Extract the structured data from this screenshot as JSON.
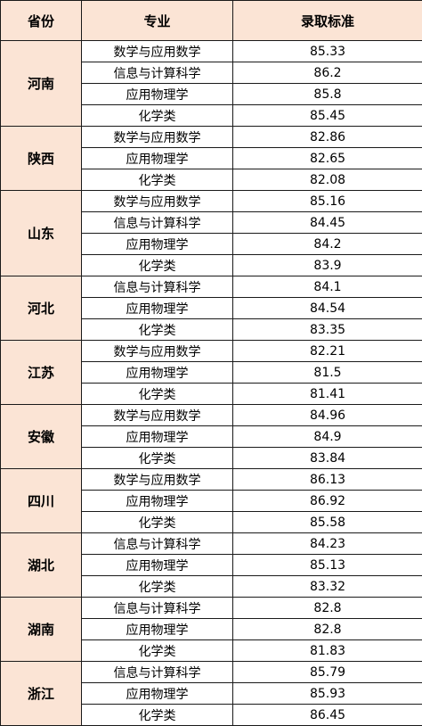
{
  "header": {
    "province": "省份",
    "major": "专业",
    "score": "录取标准"
  },
  "groups": [
    {
      "province": "河南",
      "rows": [
        {
          "major": "数学与应用数学",
          "score": "85.33"
        },
        {
          "major": "信息与计算科学",
          "score": "86.2"
        },
        {
          "major": "应用物理学",
          "score": "85.8"
        },
        {
          "major": "化学类",
          "score": "85.45"
        }
      ]
    },
    {
      "province": "陕西",
      "rows": [
        {
          "major": "数学与应用数学",
          "score": "82.86"
        },
        {
          "major": "应用物理学",
          "score": "82.65"
        },
        {
          "major": "化学类",
          "score": "82.08"
        }
      ]
    },
    {
      "province": "山东",
      "rows": [
        {
          "major": "数学与应用数学",
          "score": "85.16"
        },
        {
          "major": "信息与计算科学",
          "score": "84.45"
        },
        {
          "major": "应用物理学",
          "score": "84.2"
        },
        {
          "major": "化学类",
          "score": "83.9"
        }
      ]
    },
    {
      "province": "河北",
      "rows": [
        {
          "major": "信息与计算科学",
          "score": "84.1"
        },
        {
          "major": "应用物理学",
          "score": "84.54"
        },
        {
          "major": "化学类",
          "score": "83.35"
        }
      ]
    },
    {
      "province": "江苏",
      "rows": [
        {
          "major": "数学与应用数学",
          "score": "82.21"
        },
        {
          "major": "应用物理学",
          "score": "81.5"
        },
        {
          "major": "化学类",
          "score": "81.41"
        }
      ]
    },
    {
      "province": "安徽",
      "rows": [
        {
          "major": "数学与应用数学",
          "score": "84.96"
        },
        {
          "major": "应用物理学",
          "score": "84.9"
        },
        {
          "major": "化学类",
          "score": "83.84"
        }
      ]
    },
    {
      "province": "四川",
      "rows": [
        {
          "major": "数学与应用数学",
          "score": "86.13"
        },
        {
          "major": "应用物理学",
          "score": "86.92"
        },
        {
          "major": "化学类",
          "score": "85.58"
        }
      ]
    },
    {
      "province": "湖北",
      "rows": [
        {
          "major": "信息与计算科学",
          "score": "84.23"
        },
        {
          "major": "应用物理学",
          "score": "85.13"
        },
        {
          "major": "化学类",
          "score": "83.32"
        }
      ]
    },
    {
      "province": "湖南",
      "rows": [
        {
          "major": "信息与计算科学",
          "score": "82.8"
        },
        {
          "major": "应用物理学",
          "score": "82.8"
        },
        {
          "major": "化学类",
          "score": "81.83"
        }
      ]
    },
    {
      "province": "浙江",
      "rows": [
        {
          "major": "信息与计算科学",
          "score": "85.79"
        },
        {
          "major": "应用物理学",
          "score": "85.93"
        },
        {
          "major": "化学类",
          "score": "86.45"
        }
      ]
    }
  ]
}
